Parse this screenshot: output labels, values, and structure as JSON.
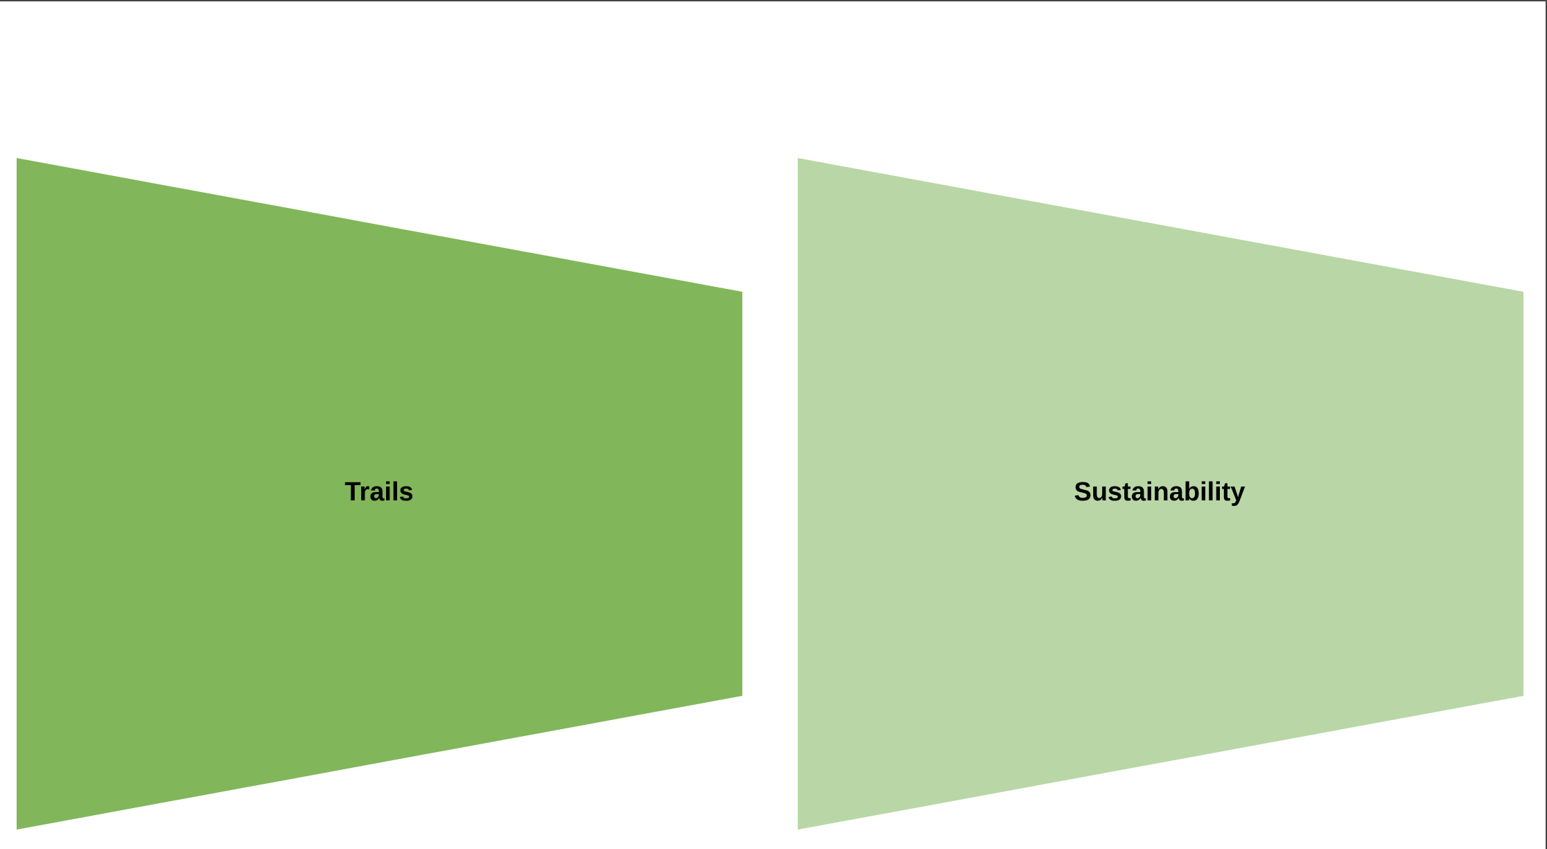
{
  "diagram": {
    "shapes": [
      {
        "label": "Trails",
        "color": "#81b65b"
      },
      {
        "label": "Sustainability",
        "color": "#b9d6a6"
      }
    ]
  }
}
